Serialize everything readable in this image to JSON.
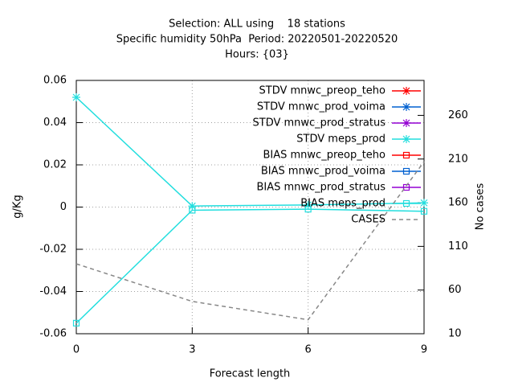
{
  "chart_data": {
    "type": "line",
    "title": [
      "Selection: ALL using    18 stations",
      "Specific humidity 50hPa  Period: 20220501-20220520",
      "Hours: {03}"
    ],
    "x_label": "Forecast length",
    "y_label": "g/Kg",
    "y2_label": "No cases",
    "x": [
      0,
      3,
      6,
      9
    ],
    "xlim": [
      0,
      9
    ],
    "xticks": [
      0,
      3,
      6,
      9
    ],
    "ylim": [
      -0.06,
      0.06
    ],
    "yticks": [
      -0.06,
      -0.04,
      -0.02,
      0,
      0.02,
      0.04,
      0.06
    ],
    "y2lim": [
      10,
      300
    ],
    "y2ticks": [
      10,
      60,
      110,
      160,
      210,
      260
    ],
    "grid": true,
    "legend": "top-right",
    "series": [
      {
        "name": "STDV mnwc_preop_teho",
        "color": "#ff0000",
        "marker": "star",
        "values": [
          null,
          null,
          null,
          null
        ]
      },
      {
        "name": "STDV mnwc_prod_voima",
        "color": "#0060d0",
        "marker": "star",
        "values": [
          null,
          null,
          null,
          null
        ]
      },
      {
        "name": "STDV mnwc_prod_stratus",
        "color": "#9400d3",
        "marker": "star",
        "values": [
          null,
          null,
          null,
          null
        ]
      },
      {
        "name": "STDV meps_prod",
        "color": "#22dede",
        "marker": "star",
        "values": [
          0.052,
          0.0005,
          0.001,
          0.002
        ]
      },
      {
        "name": "BIAS mnwc_preop_teho",
        "color": "#ff0000",
        "marker": "square",
        "values": [
          null,
          null,
          null,
          null
        ]
      },
      {
        "name": "BIAS mnwc_prod_voima",
        "color": "#0060d0",
        "marker": "square",
        "values": [
          null,
          null,
          null,
          null
        ]
      },
      {
        "name": "BIAS mnwc_prod_stratus",
        "color": "#9400d3",
        "marker": "square",
        "values": [
          null,
          null,
          null,
          null
        ]
      },
      {
        "name": "BIAS meps_prod",
        "color": "#22dede",
        "marker": "square",
        "values": [
          -0.055,
          -0.0015,
          -0.001,
          -0.002
        ]
      },
      {
        "name": "CASES",
        "color": "#888888",
        "marker": "none",
        "dashed": true,
        "axis": "y2",
        "values": [
          90,
          47,
          26,
          207
        ]
      }
    ]
  }
}
